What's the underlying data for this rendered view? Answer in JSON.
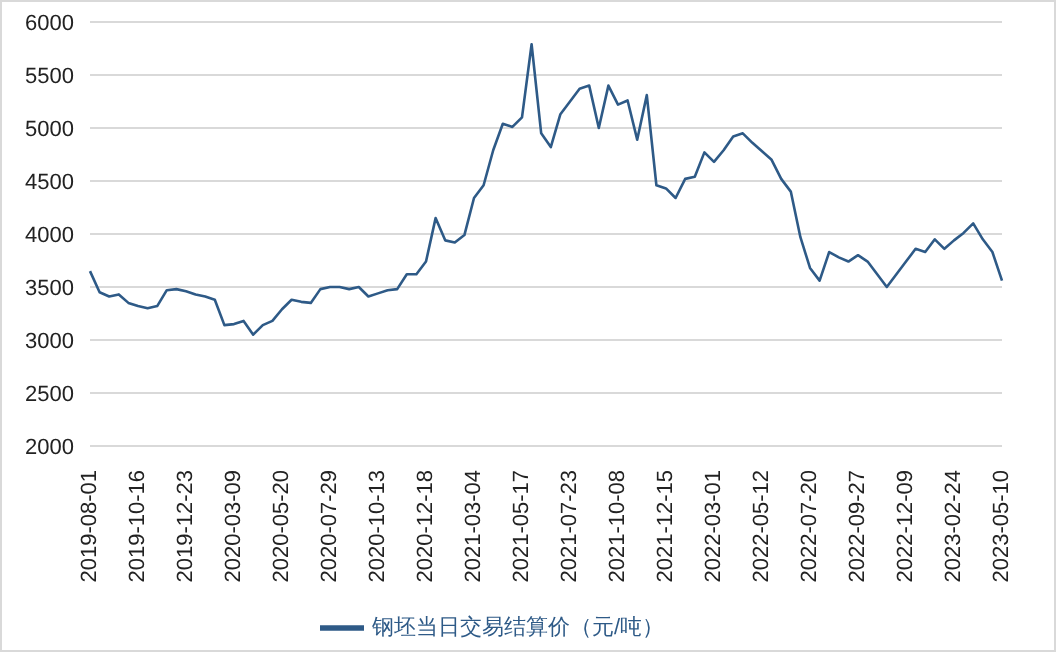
{
  "chart_data": {
    "type": "line",
    "categories": [
      "2019-08-01",
      null,
      null,
      null,
      null,
      "2019-10-16",
      null,
      null,
      null,
      null,
      "2019-12-23",
      null,
      null,
      null,
      null,
      "2020-03-09",
      null,
      null,
      null,
      null,
      "2020-05-20",
      null,
      null,
      null,
      null,
      "2020-07-29",
      null,
      null,
      null,
      null,
      "2020-10-13",
      null,
      null,
      null,
      null,
      "2020-12-18",
      null,
      null,
      null,
      null,
      "2021-03-04",
      null,
      null,
      null,
      null,
      "2021-05-17",
      null,
      null,
      null,
      null,
      "2021-07-23",
      null,
      null,
      null,
      null,
      "2021-10-08",
      null,
      null,
      null,
      null,
      "2021-12-15",
      null,
      null,
      null,
      null,
      "2022-03-01",
      null,
      null,
      null,
      null,
      "2022-05-12",
      null,
      null,
      null,
      null,
      "2022-07-20",
      null,
      null,
      null,
      null,
      "2022-09-27",
      null,
      null,
      null,
      null,
      "2022-12-09",
      null,
      null,
      null,
      null,
      "2023-02-24",
      null,
      null,
      null,
      null,
      "2023-05-10"
    ],
    "series": [
      {
        "name": "钢坯当日交易结算价（元/吨）",
        "color": "#2e5a87",
        "values": [
          3650,
          3450,
          3410,
          3430,
          3350,
          3320,
          3300,
          3320,
          3470,
          3480,
          3460,
          3430,
          3410,
          3380,
          3140,
          3150,
          3180,
          3050,
          3140,
          3180,
          3290,
          3380,
          3360,
          3350,
          3480,
          3500,
          3500,
          3480,
          3500,
          3410,
          3440,
          3470,
          3480,
          3620,
          3620,
          3740,
          4150,
          3940,
          3920,
          3990,
          4340,
          4460,
          4790,
          5040,
          5010,
          5100,
          5790,
          4950,
          4820,
          5130,
          5250,
          5370,
          5400,
          5000,
          5400,
          5220,
          5260,
          4890,
          5310,
          4460,
          4430,
          4340,
          4520,
          4540,
          4770,
          4680,
          4790,
          4920,
          4950,
          4860,
          4780,
          4700,
          4520,
          4400,
          3970,
          3680,
          3560,
          3830,
          3780,
          3740,
          3800,
          3740,
          3620,
          3500,
          3620,
          3740,
          3860,
          3830,
          3950,
          3860,
          3940,
          4010,
          4100,
          3950,
          3830,
          3560
        ]
      }
    ],
    "ylim": [
      2000,
      6000
    ],
    "yticks": [
      2000,
      2500,
      3000,
      3500,
      4000,
      4500,
      5000,
      5500,
      6000
    ],
    "grid": "y",
    "legend": "bottom",
    "marker": "none",
    "line_style": "solid"
  }
}
